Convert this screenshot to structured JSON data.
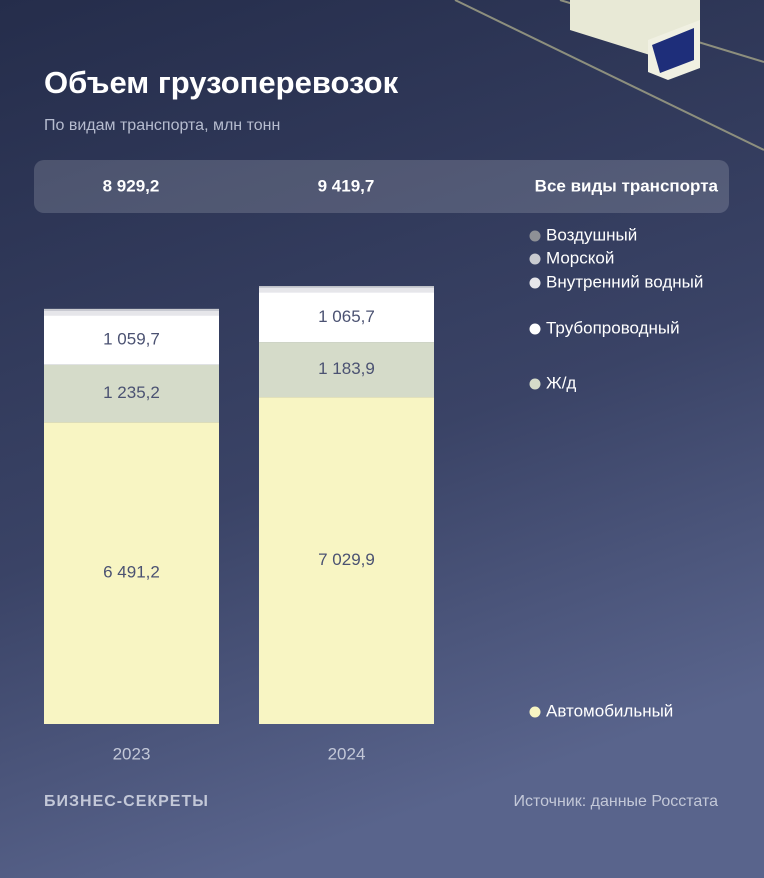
{
  "chart_data": {
    "type": "stacked-bar",
    "title": "Объем грузоперевозок",
    "subtitle": "По видам транспорта, млн тонн",
    "categories": [
      "2023",
      "2024"
    ],
    "totals_label": "Все виды транспорта",
    "totals": [
      8929.2,
      9419.7
    ],
    "total_labels": [
      "8 929,2",
      "9 419,7"
    ],
    "series": [
      {
        "name": "Воздушный",
        "color": "#8e9096",
        "values": [
          1.1,
          1.1
        ]
      },
      {
        "name": "Морской",
        "color": "#c9cbd0",
        "values": [
          30.2,
          28.6
        ]
      },
      {
        "name": "Внутренний водный",
        "color": "#e6e6ea",
        "values": [
          111.8,
          110.5
        ]
      },
      {
        "name": "Трубопроводный",
        "color": "#ffffff",
        "values": [
          1059.7,
          1065.7
        ],
        "value_labels": [
          "1 059,7",
          "1 065,7"
        ]
      },
      {
        "name": "Ж/д",
        "color": "#d5dbc9",
        "values": [
          1235.2,
          1183.9
        ],
        "value_labels": [
          "1 235,2",
          "1 183,9"
        ]
      },
      {
        "name": "Автомобильный",
        "color": "#f8f5c3",
        "values": [
          6491.2,
          7029.9
        ],
        "value_labels": [
          "6 491,2",
          "7 029,9"
        ]
      }
    ],
    "source": "Источник: данные Росстата",
    "brand": "БИЗНЕС-СЕКРЕТЫ"
  }
}
